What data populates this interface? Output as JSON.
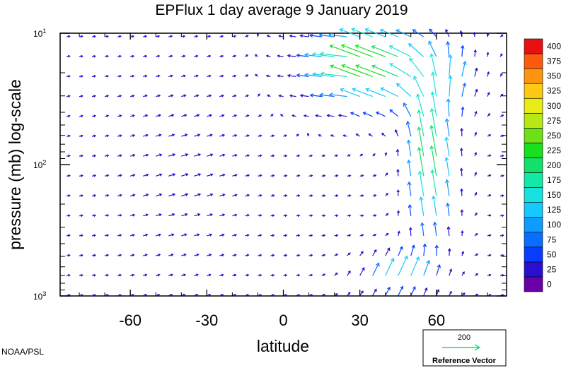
{
  "chart_data": {
    "type": "quiver",
    "title": "EPFlux  1 day average  9 January   2019",
    "xlabel": "latitude",
    "ylabel": "pressure (mb)  log-scale",
    "xlim": [
      -87.5,
      87.5
    ],
    "ylim_mb": [
      10,
      1000
    ],
    "y_scale": "log",
    "y_direction": "decreasing-upward",
    "x_ticks": [
      -60,
      -30,
      0,
      30,
      60
    ],
    "x_tick_labels": [
      "-60",
      "-30",
      "0",
      "30",
      "60"
    ],
    "y_ticks_mb": [
      10,
      100,
      1000
    ],
    "y_tick_labels": [
      {
        "base": "10",
        "exp": "1"
      },
      {
        "base": "10",
        "exp": "2"
      },
      {
        "base": "10",
        "exp": "3"
      }
    ],
    "grid": false,
    "colorbar": {
      "position": "right",
      "levels": [
        0,
        25,
        50,
        75,
        100,
        125,
        150,
        175,
        200,
        225,
        250,
        275,
        300,
        325,
        350,
        375,
        400
      ],
      "colors": [
        "#6a00a8",
        "#2a0fcf",
        "#0a3cff",
        "#0a6dff",
        "#0f9cff",
        "#17c8ff",
        "#16e3e0",
        "#14e8a6",
        "#12e06a",
        "#18e01c",
        "#6ee018",
        "#b8e814",
        "#e8ec14",
        "#fcca14",
        "#fc9410",
        "#fc5a10",
        "#e81010"
      ]
    },
    "vector_field": {
      "units": "magnitude on colorbar scale; components as (F_phi, F_p) in reference-vector units",
      "note": "vectors estimated from the plot; only the visible text is exact",
      "strong_region": [
        {
          "lat": 0,
          "p": 15,
          "u": -110,
          "v": 0
        },
        {
          "lat": 10,
          "p": 13,
          "u": -120,
          "v": 15
        },
        {
          "lat": 20,
          "p": 13,
          "u": -140,
          "v": 25
        },
        {
          "lat": 30,
          "p": 13,
          "u": -170,
          "v": 40
        },
        {
          "lat": 40,
          "p": 13,
          "u": -180,
          "v": 60
        },
        {
          "lat": 50,
          "p": 12,
          "u": -160,
          "v": 100
        },
        {
          "lat": 0,
          "p": 20,
          "u": -130,
          "v": 0
        },
        {
          "lat": 20,
          "p": 20,
          "u": -110,
          "v": 15
        },
        {
          "lat": 40,
          "p": 20,
          "u": -150,
          "v": 50
        },
        {
          "lat": 50,
          "p": 20,
          "u": -140,
          "v": 120
        },
        {
          "lat": 40,
          "p": 37,
          "u": -110,
          "v": 40
        },
        {
          "lat": 55,
          "p": 37,
          "u": -80,
          "v": 140
        },
        {
          "lat": 60,
          "p": 100,
          "u": -30,
          "v": 170
        },
        {
          "lat": 55,
          "p": 300,
          "u": 20,
          "v": 120
        },
        {
          "lat": 35,
          "p": 900,
          "u": 20,
          "v": 150
        }
      ]
    },
    "reference_vector": {
      "value": "200",
      "label": "Reference Vector"
    },
    "credit": "NOAA/PSL"
  }
}
